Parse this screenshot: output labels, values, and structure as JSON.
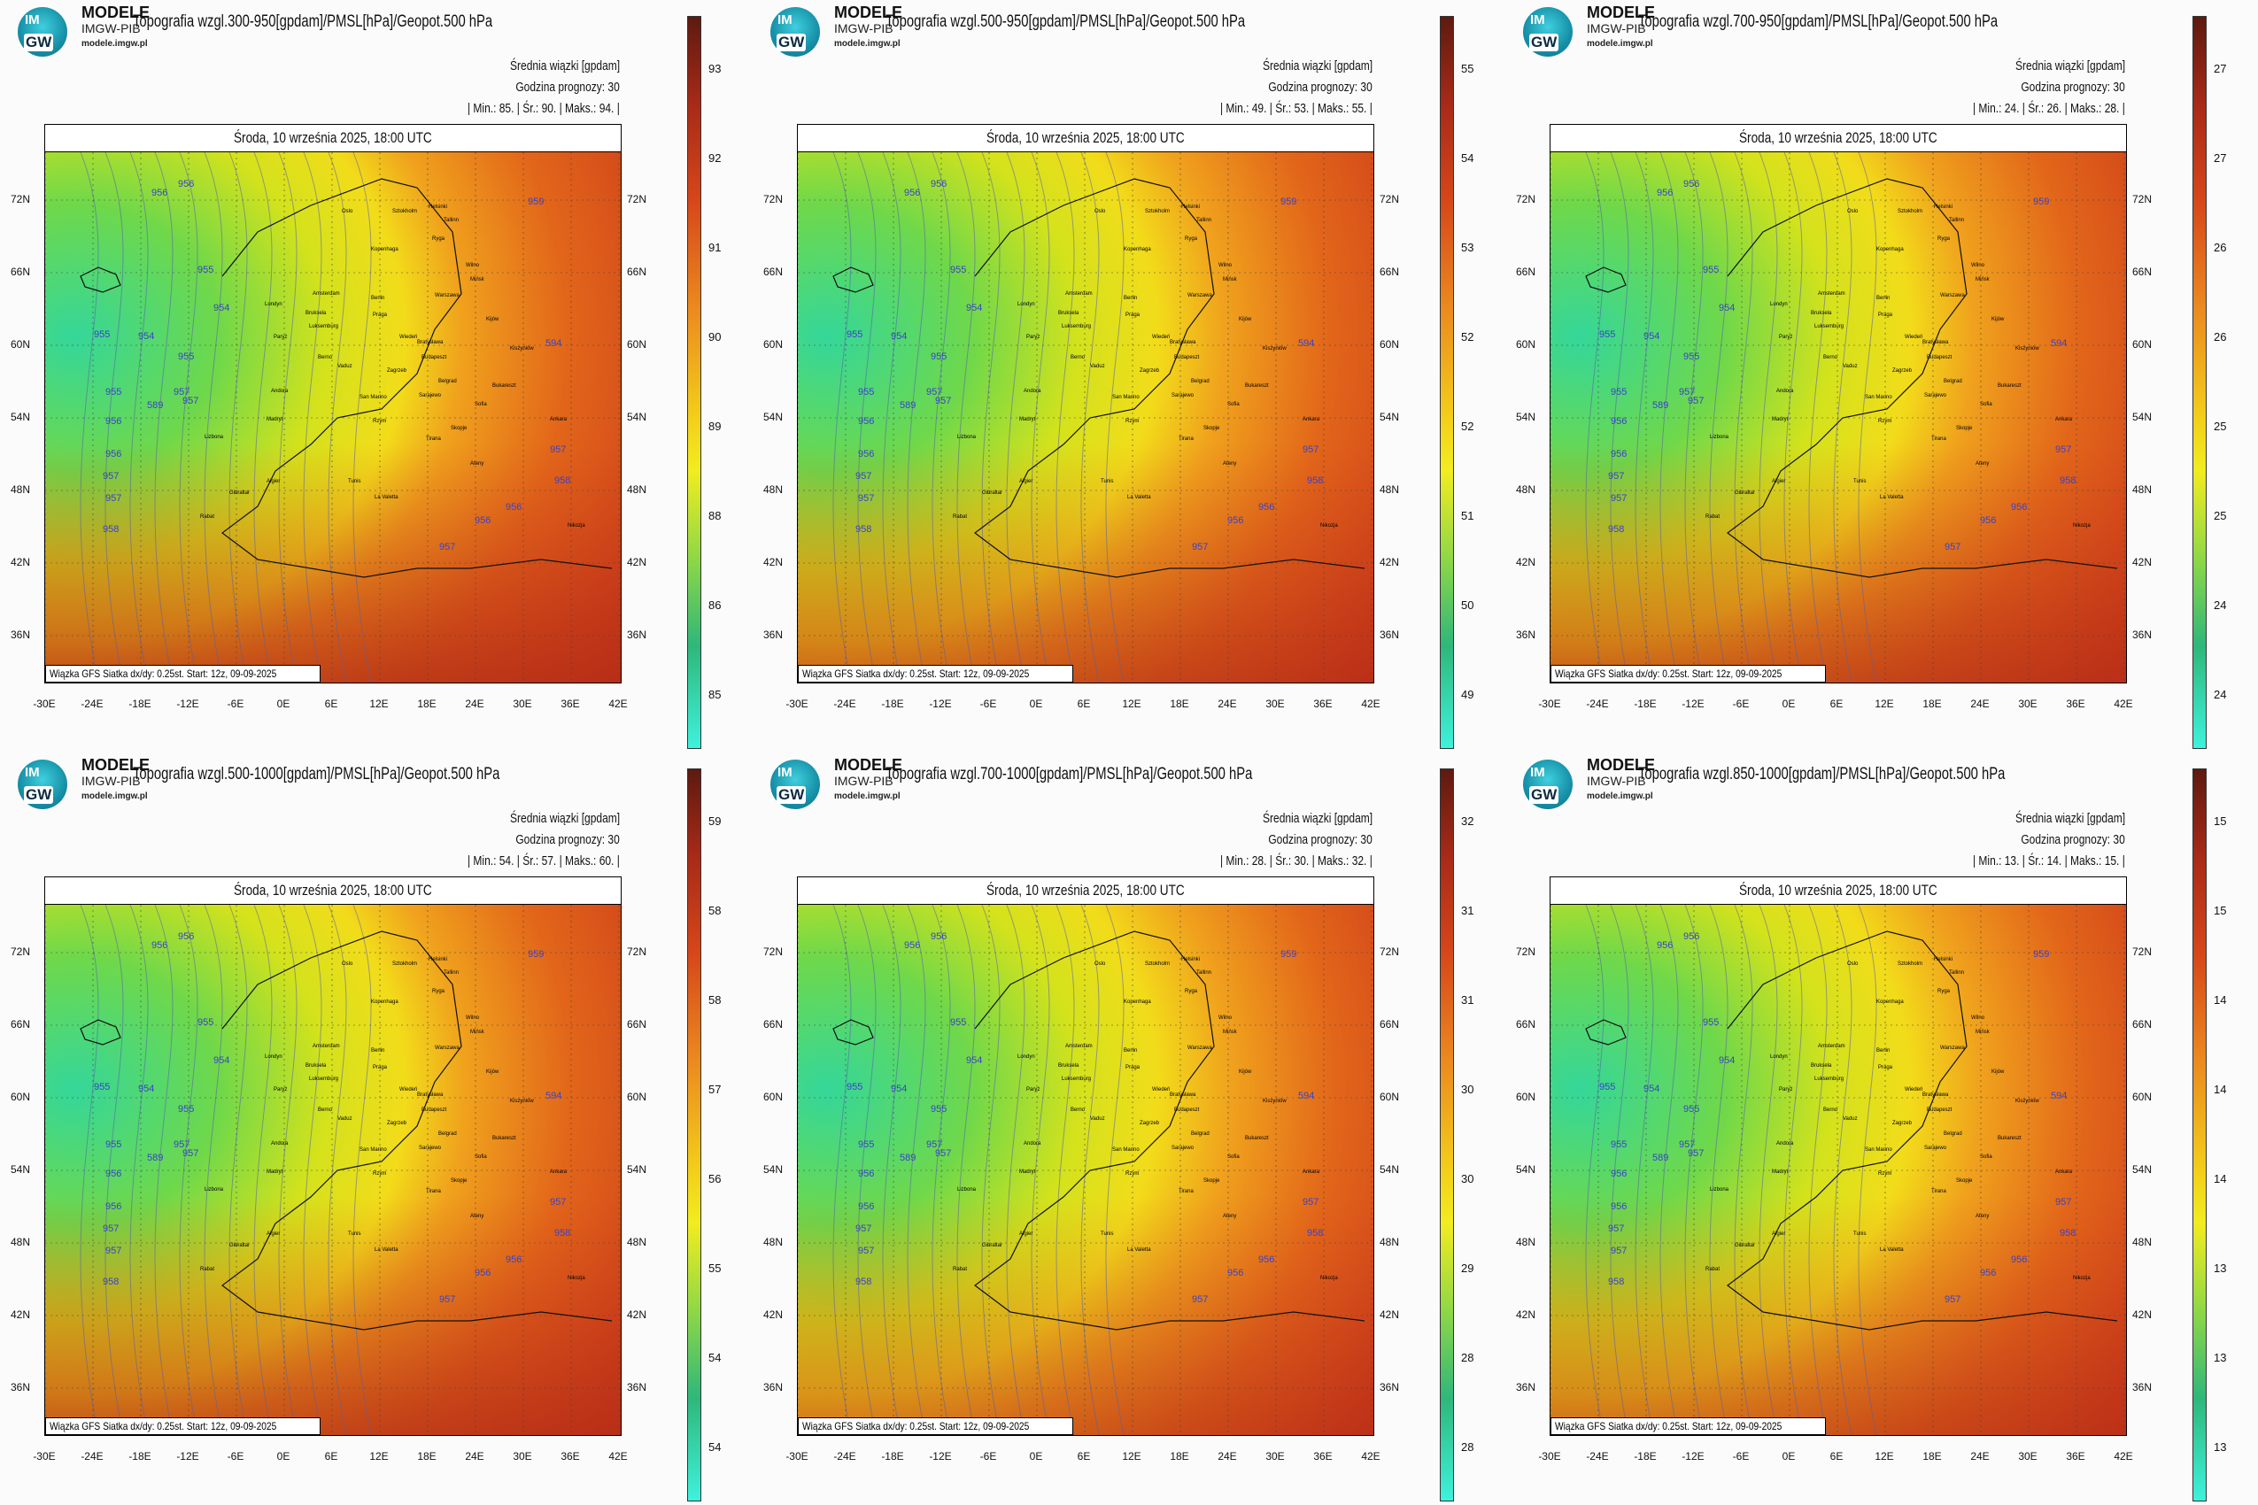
{
  "brand": {
    "line1": "MODELE",
    "line2": "IMGW-PIB",
    "line3": "modele.imgw.pl",
    "logo_top": "IM",
    "logo_bottom": "GW"
  },
  "common": {
    "stat_label": "Średnia wiązki [gpdam]",
    "forecast_hour": "Godzina prognozy: 30",
    "date": "Środa, 10 września 2025, 18:00 UTC",
    "source": "Wiązka GFS Siatka dx/dy: 0.25st. Start: 12z, 09-09-2025",
    "lat_labels": [
      "72N",
      "66N",
      "60N",
      "54N",
      "48N",
      "42N",
      "36N"
    ],
    "lon_labels": [
      "-30E",
      "-24E",
      "-18E",
      "-12E",
      "-6E",
      "0E",
      "6E",
      "12E",
      "18E",
      "24E",
      "30E",
      "36E",
      "42E"
    ],
    "cities": [
      "Oslo",
      "Sztokholm",
      "Helsinki",
      "Tallinn",
      "Ryga",
      "Kopenhaga",
      "Wilno",
      "Mińsk",
      "Amsterdam",
      "Berlin",
      "Warszawa",
      "Londyn",
      "Bruksela",
      "Praga",
      "Kijów",
      "Luksemburg",
      "Paryż",
      "Wiedeń",
      "Bratysława",
      "Kiszyniów",
      "Berno",
      "Vaduz",
      "Budapeszt",
      "Zagrzeb",
      "Belgrad",
      "Bukareszt",
      "Andora",
      "Sarajewo",
      "San Marino",
      "Sofia",
      "Madryt",
      "Lizbona",
      "Rzym",
      "Skopje",
      "Tirana",
      "Ateny",
      "Ankara",
      "Algier",
      "Tunis",
      "Gibraltar",
      "La Valetta",
      "Rabat",
      "Nikozja"
    ],
    "contours": [
      "956",
      "956",
      "955",
      "954",
      "955",
      "957",
      "954",
      "955",
      "955",
      "956",
      "956",
      "957",
      "957",
      "957",
      "958",
      "959",
      "958",
      "957",
      "956",
      "956",
      "957",
      "589",
      "594",
      "958"
    ],
    "colors": {
      "green": "#2ecf8a",
      "yellow": "#f2e51a",
      "orange": "#e87a1c",
      "red": "#c9321a",
      "darkred": "#7a1c10",
      "cyan": "#3af0d8"
    }
  },
  "panels": [
    {
      "title": "Topografia wzgl.300-950[gpdam]/PMSL[hPa]/Geopot.500 hPa",
      "min": "85.",
      "mean": "90.",
      "max": "94.",
      "stat_line": "| Min.: 85. | Śr.: 90. | Maks.: 94. |",
      "ticks": [
        "93",
        "92",
        "91",
        "90",
        "89",
        "88",
        "86",
        "85"
      ]
    },
    {
      "title": "Topografia wzgl.500-950[gpdam]/PMSL[hPa]/Geopot.500 hPa",
      "min": "49.",
      "mean": "53.",
      "max": "55.",
      "stat_line": "| Min.: 49. | Śr.: 53. | Maks.: 55. |",
      "ticks": [
        "55",
        "54",
        "53",
        "52",
        "52",
        "51",
        "50",
        "49"
      ]
    },
    {
      "title": "Topografia wzgl.700-950[gpdam]/PMSL[hPa]/Geopot.500 hPa",
      "min": "24.",
      "mean": "26.",
      "max": "28.",
      "stat_line": "| Min.: 24. | Śr.: 26. | Maks.: 28. |",
      "ticks": [
        "27",
        "27",
        "26",
        "26",
        "25",
        "25",
        "24",
        "24"
      ]
    },
    {
      "title": "Topografia wzgl.500-1000[gpdam]/PMSL[hPa]/Geopot.500 hPa",
      "min": "54.",
      "mean": "57.",
      "max": "60.",
      "stat_line": "| Min.: 54. | Śr.: 57. | Maks.: 60. |",
      "ticks": [
        "59",
        "58",
        "58",
        "57",
        "56",
        "55",
        "54",
        "54"
      ]
    },
    {
      "title": "Topografia wzgl.700-1000[gpdam]/PMSL[hPa]/Geopot.500 hPa",
      "min": "28.",
      "mean": "30.",
      "max": "32.",
      "stat_line": "| Min.: 28. | Śr.: 30. | Maks.: 32. |",
      "ticks": [
        "32",
        "31",
        "31",
        "30",
        "30",
        "29",
        "28",
        "28"
      ]
    },
    {
      "title": "Topografia wzgl.850-1000[gpdam]/PMSL[hPa]/Geopot.500 hPa",
      "min": "13.",
      "mean": "14.",
      "max": "15.",
      "stat_line": "| Min.: 13. | Śr.: 14. | Maks.: 15. |",
      "ticks": [
        "15",
        "15",
        "14",
        "14",
        "14",
        "13",
        "13",
        "13"
      ]
    }
  ]
}
